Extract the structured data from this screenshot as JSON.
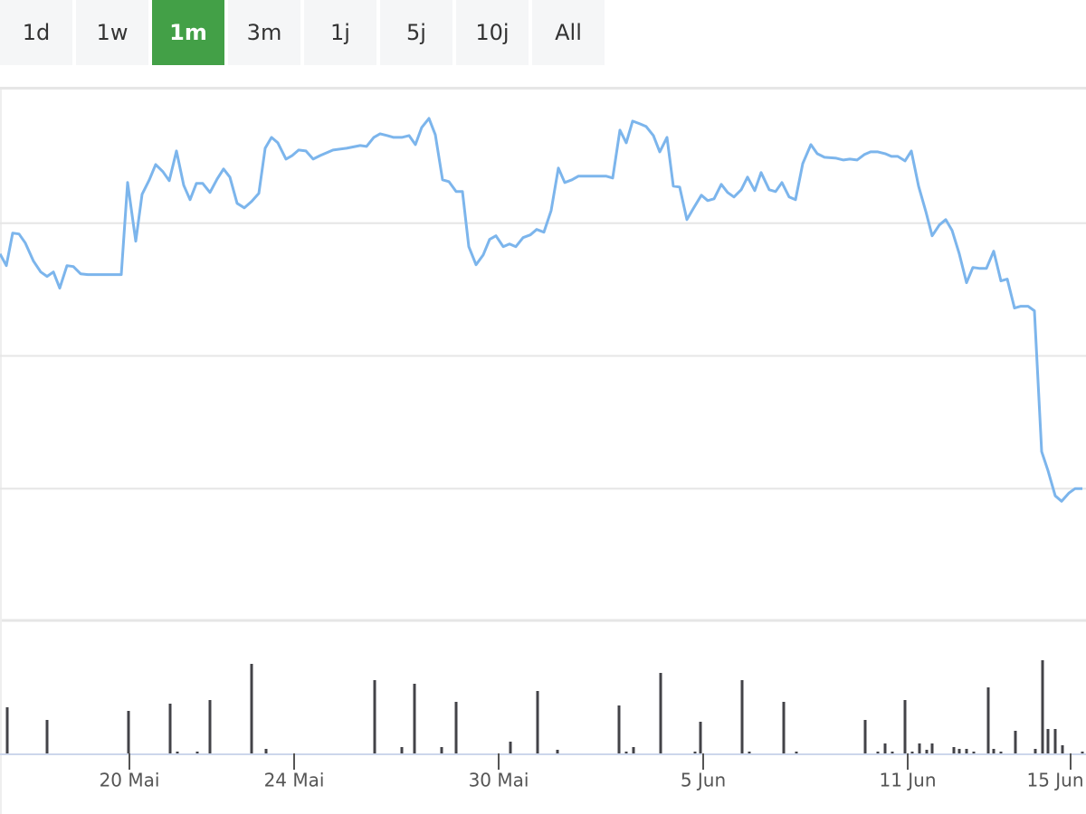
{
  "range_buttons": {
    "labels": [
      "1d",
      "1w",
      "1m",
      "3m",
      "1j",
      "5j",
      "10j",
      "All"
    ],
    "selected": 2
  },
  "chart_data": [
    {
      "type": "line",
      "x": [
        0,
        0.7,
        1.4,
        2.1,
        2.8,
        3.7,
        4.5,
        5.2,
        5.9,
        6.6,
        7.4,
        8.1,
        8.9,
        9.7,
        13.4,
        14.1,
        15.0,
        15.7,
        16.5,
        17.2,
        18.0,
        18.7,
        19.5,
        20.3,
        21.0,
        21.7,
        22.4,
        23.2,
        24.0,
        24.7,
        25.4,
        26.2,
        27.0,
        27.8,
        28.6,
        29.3,
        30.0,
        30.7,
        31.6,
        32.3,
        33.0,
        33.8,
        34.6,
        35.4,
        36.8,
        38.3,
        39.8,
        40.5,
        41.3,
        42.0,
        42.8,
        43.5,
        44.4,
        45.2,
        45.9,
        46.6,
        47.4,
        48.1,
        48.9,
        49.6,
        50.4,
        51.1,
        51.8,
        52.6,
        53.4,
        54.1,
        54.8,
        55.6,
        56.3,
        57.0,
        57.8,
        58.6,
        59.3,
        60.1,
        60.9,
        61.7,
        62.4,
        63.2,
        63.9,
        67.0,
        67.7,
        68.5,
        69.2,
        69.9,
        70.7,
        71.4,
        72.2,
        72.9,
        73.7,
        74.4,
        75.1,
        75.9,
        76.6,
        77.5,
        78.2,
        78.9,
        79.7,
        80.4,
        81.1,
        81.9,
        82.6,
        83.4,
        84.1,
        85.0,
        85.7,
        86.4,
        87.2,
        87.9,
        88.7,
        89.6,
        90.3,
        91.1,
        92.4,
        93.2,
        93.9,
        94.7,
        95.5,
        96.2,
        97.0,
        97.8,
        98.5,
        99.2,
        100.0,
        100.7,
        101.5,
        102.3,
        103.0,
        103.8,
        104.5,
        105.2,
        106.0,
        106.8,
        107.5,
        108.2,
        109.0,
        109.8,
        110.6,
        111.3,
        112.1,
        112.8,
        113.6,
        114.3,
        115.1,
        115.8,
        116.6,
        117.3,
        118.1,
        118.8,
        119.6
      ],
      "series": [
        {
          "color": "#7cb5ec",
          "values": [
            406,
            393,
            429,
            428,
            418,
            398,
            386,
            381,
            386,
            368,
            393,
            392,
            384,
            383,
            383,
            485,
            420,
            472,
            488,
            505,
            497,
            487,
            520,
            482,
            466,
            484,
            484,
            474,
            489,
            500,
            491,
            462,
            457,
            464,
            473,
            523,
            535,
            529,
            511,
            515,
            521,
            520,
            511,
            515,
            521,
            523,
            526,
            525,
            535,
            539,
            537,
            535,
            535,
            537,
            527,
            546,
            556,
            538,
            488,
            486,
            475,
            475,
            414,
            394,
            405,
            422,
            426,
            414,
            417,
            414,
            424,
            427,
            433,
            430,
            454,
            501,
            485,
            488,
            492,
            492,
            490,
            543,
            529,
            553,
            550,
            547,
            537,
            519,
            535,
            481,
            480,
            444,
            456,
            471,
            465,
            467,
            483,
            474,
            469,
            477,
            491,
            476,
            496,
            477,
            475,
            485,
            469,
            466,
            506,
            527,
            517,
            513,
            512,
            510,
            511,
            510,
            516,
            519,
            519,
            517,
            514,
            514,
            509,
            520,
            481,
            453,
            426,
            438,
            444,
            432,
            406,
            374,
            391,
            390,
            390,
            409,
            376,
            378,
            346,
            348,
            348,
            343,
            187,
            166,
            138,
            132,
            141,
            146,
            146
          ]
        }
      ],
      "xlim": [
        0,
        120
      ],
      "ylim": [
        0,
        590
      ],
      "yticks": [
        146,
        293,
        440,
        589
      ],
      "grid": true
    },
    {
      "type": "bar",
      "color": "#434348",
      "x": [
        0.8,
        5.2,
        14.2,
        18.8,
        19.6,
        21.8,
        23.2,
        27.8,
        29.4,
        41.4,
        44.4,
        45.8,
        48.8,
        50.4,
        56.4,
        59.4,
        61.6,
        68.4,
        69.2,
        70.0,
        73.0,
        76.8,
        77.4,
        82.0,
        82.8,
        86.6,
        88.0,
        95.6,
        97.0,
        97.8,
        98.6,
        100.0,
        100.8,
        101.6,
        102.4,
        103.0,
        105.4,
        106.0,
        106.8,
        107.6,
        109.2,
        109.8,
        110.6,
        112.2,
        114.4,
        115.2,
        115.8,
        116.6,
        117.4,
        119.6
      ],
      "values": [
        51,
        37,
        47,
        55,
        2,
        2,
        59,
        99,
        5,
        81,
        7,
        77,
        7,
        57,
        13,
        69,
        4,
        53,
        2,
        7,
        89,
        2,
        35,
        81,
        2,
        57,
        2,
        37,
        2,
        11,
        2,
        59,
        2,
        11,
        4,
        11,
        7,
        5,
        5,
        2,
        73,
        5,
        2,
        25,
        5,
        103,
        27,
        27,
        9,
        2
      ],
      "xlim": [
        0,
        120
      ],
      "ylim": [
        0,
        146
      ],
      "xticks": [
        {
          "value": 14.3,
          "label": "20 Mai"
        },
        {
          "value": 32.5,
          "label": "24 Mai"
        },
        {
          "value": 55.1,
          "label": "30 Mai"
        },
        {
          "value": 77.7,
          "label": "5 Jun"
        },
        {
          "value": 100.3,
          "label": "11 Jun"
        },
        {
          "value": 118.3,
          "label": "15 Jun"
        }
      ]
    }
  ]
}
